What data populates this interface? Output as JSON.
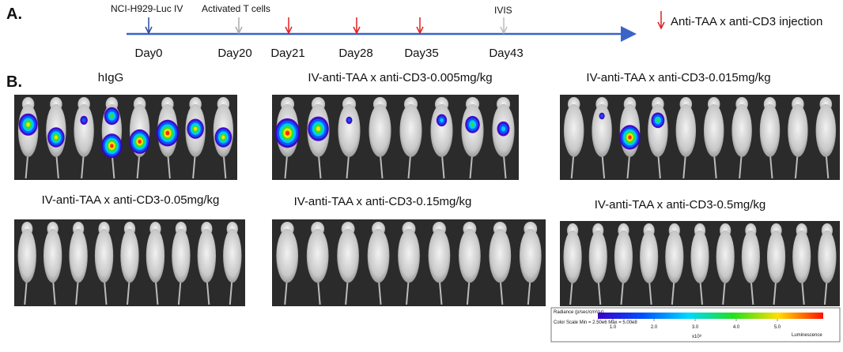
{
  "panel_a": {
    "label": "A.",
    "top_labels": [
      "NCI-H929-Luc IV",
      "Activated T cells",
      "IVIS"
    ],
    "days": [
      "Day0",
      "Day20",
      "Day21",
      "Day28",
      "Day35",
      "Day43"
    ],
    "legend": "Anti-TAA x anti-CD3 injection"
  },
  "panel_b": {
    "label": "B.",
    "groups": [
      "hIgG",
      "IV-anti-TAA x anti-CD3-0.005mg/kg",
      "IV-anti-TAA x anti-CD3-0.015mg/kg",
      "IV-anti-TAA x anti-CD3-0.05mg/kg",
      "IV-anti-TAA x anti-CD3-0.15mg/kg",
      "IV-anti-TAA x anti-CD3-0.5mg/kg"
    ],
    "colorbar": {
      "ticks": [
        "1.0",
        "2.0",
        "3.0",
        "4.0",
        "5.0"
      ],
      "exponent": "x10⁸",
      "unit": "Radiance (p/sec/cm²/sr)",
      "scale": "Color Scale Min = 2.50e6 Max = 5.00e8",
      "mode": "Luminescence"
    }
  }
}
